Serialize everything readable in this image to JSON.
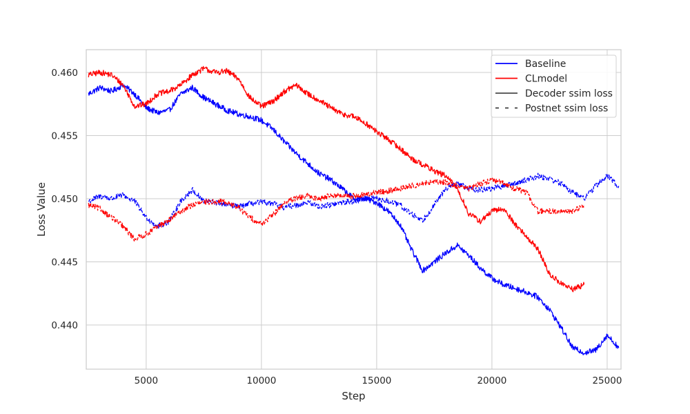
{
  "chart_data": {
    "type": "line",
    "xlabel": "Step",
    "ylabel": "Loss Value",
    "xlim": [
      2400,
      25600
    ],
    "ylim": [
      0.4365,
      0.4618
    ],
    "x_ticks": [
      5000,
      10000,
      15000,
      20000,
      25000
    ],
    "y_ticks": [
      0.44,
      0.445,
      0.45,
      0.455,
      0.46
    ],
    "x_tick_labels": [
      "5000",
      "10000",
      "15000",
      "20000",
      "25000"
    ],
    "y_tick_labels": [
      "0.440",
      "0.445",
      "0.450",
      "0.455",
      "0.460"
    ],
    "grid": true,
    "legend_position": "top-right",
    "legend": [
      {
        "label": "Baseline",
        "color": "#0000ff",
        "style": "solid"
      },
      {
        "label": "CLmodel",
        "color": "#ff0000",
        "style": "solid"
      },
      {
        "label": "Decoder ssim loss",
        "color": "#000000",
        "style": "solid"
      },
      {
        "label": "Postnet ssim loss",
        "color": "#000000",
        "style": "dashed"
      }
    ],
    "series": [
      {
        "name": "Baseline",
        "loss": "Decoder ssim loss",
        "color": "#0000ff",
        "style": "solid",
        "x": [
          2500,
          3000,
          3500,
          4000,
          4500,
          5000,
          5500,
          6000,
          6500,
          7000,
          7500,
          8000,
          8500,
          9000,
          9500,
          10000,
          10500,
          11000,
          11500,
          12000,
          12500,
          13000,
          13500,
          14000,
          14500,
          15000,
          15500,
          16000,
          16500,
          17000,
          17500,
          18000,
          18500,
          19000,
          19500,
          20000,
          20500,
          21000,
          21500,
          22000,
          22500,
          23000,
          23500,
          24000,
          24500,
          25000,
          25500
        ],
        "y": [
          0.4583,
          0.4588,
          0.4585,
          0.459,
          0.4583,
          0.4572,
          0.4568,
          0.457,
          0.4583,
          0.4588,
          0.458,
          0.4575,
          0.457,
          0.4567,
          0.4565,
          0.4562,
          0.4555,
          0.4545,
          0.4536,
          0.4528,
          0.452,
          0.4515,
          0.4508,
          0.45,
          0.45,
          0.4497,
          0.449,
          0.448,
          0.446,
          0.4443,
          0.445,
          0.4457,
          0.4463,
          0.4455,
          0.4445,
          0.4437,
          0.4432,
          0.4429,
          0.4426,
          0.4422,
          0.4412,
          0.4398,
          0.4382,
          0.4378,
          0.438,
          0.4392,
          0.4382
        ]
      },
      {
        "name": "CLmodel",
        "loss": "Decoder ssim loss",
        "color": "#ff0000",
        "style": "solid",
        "x": [
          2500,
          3000,
          3500,
          4000,
          4500,
          5000,
          5500,
          6000,
          6500,
          7000,
          7500,
          8000,
          8500,
          9000,
          9500,
          10000,
          10500,
          11000,
          11500,
          12000,
          12500,
          13000,
          13500,
          14000,
          14500,
          15000,
          15500,
          16000,
          16500,
          17000,
          17500,
          18000,
          18500,
          19000,
          19500,
          20000,
          20500,
          21000,
          21500,
          22000,
          22500,
          23000,
          23500,
          24000
        ],
        "y": [
          0.4598,
          0.46,
          0.4598,
          0.459,
          0.4573,
          0.4575,
          0.4583,
          0.4585,
          0.459,
          0.4598,
          0.4603,
          0.46,
          0.4601,
          0.4595,
          0.458,
          0.4573,
          0.4577,
          0.4585,
          0.459,
          0.4583,
          0.4578,
          0.4572,
          0.4567,
          0.4565,
          0.456,
          0.4553,
          0.4547,
          0.454,
          0.4532,
          0.4527,
          0.4522,
          0.4518,
          0.4508,
          0.4488,
          0.4482,
          0.449,
          0.4492,
          0.448,
          0.447,
          0.446,
          0.444,
          0.4433,
          0.4428,
          0.4432
        ]
      },
      {
        "name": "Baseline",
        "loss": "Postnet ssim loss",
        "color": "#0000ff",
        "style": "dashed",
        "x": [
          2500,
          3000,
          3500,
          4000,
          4500,
          5000,
          5500,
          6000,
          6500,
          7000,
          7500,
          8000,
          8500,
          9000,
          9500,
          10000,
          10500,
          11000,
          11500,
          12000,
          12500,
          13000,
          13500,
          14000,
          14500,
          15000,
          15500,
          16000,
          16500,
          17000,
          17500,
          18000,
          18500,
          19000,
          19500,
          20000,
          20500,
          21000,
          21500,
          22000,
          22500,
          23000,
          23500,
          24000,
          24500,
          25000,
          25500
        ],
        "y": [
          0.4498,
          0.4502,
          0.45,
          0.4503,
          0.4498,
          0.4485,
          0.4478,
          0.4482,
          0.4498,
          0.4507,
          0.4498,
          0.4497,
          0.4495,
          0.4494,
          0.4496,
          0.4497,
          0.4496,
          0.4493,
          0.4495,
          0.4497,
          0.4494,
          0.4495,
          0.4497,
          0.4498,
          0.45,
          0.45,
          0.4498,
          0.4495,
          0.4488,
          0.4483,
          0.4495,
          0.4508,
          0.4512,
          0.4508,
          0.4507,
          0.4508,
          0.451,
          0.4512,
          0.4515,
          0.4518,
          0.4516,
          0.4512,
          0.4505,
          0.45,
          0.451,
          0.4518,
          0.451
        ]
      },
      {
        "name": "CLmodel",
        "loss": "Postnet ssim loss",
        "color": "#ff0000",
        "style": "dashed",
        "x": [
          2500,
          3000,
          3500,
          4000,
          4500,
          5000,
          5500,
          6000,
          6500,
          7000,
          7500,
          8000,
          8500,
          9000,
          9500,
          10000,
          10500,
          11000,
          11500,
          12000,
          12500,
          13000,
          13500,
          14000,
          14500,
          15000,
          15500,
          16000,
          16500,
          17000,
          17500,
          18000,
          18500,
          19000,
          19500,
          20000,
          20500,
          21000,
          21500,
          22000,
          22500,
          23000,
          23500,
          24000
        ],
        "y": [
          0.4495,
          0.4492,
          0.4485,
          0.4478,
          0.4468,
          0.4472,
          0.4478,
          0.4483,
          0.449,
          0.4495,
          0.4497,
          0.4498,
          0.4497,
          0.4493,
          0.4485,
          0.448,
          0.4487,
          0.4497,
          0.45,
          0.4502,
          0.45,
          0.4503,
          0.4502,
          0.4502,
          0.4503,
          0.4505,
          0.4506,
          0.4508,
          0.451,
          0.4512,
          0.4513,
          0.4513,
          0.451,
          0.4508,
          0.4512,
          0.4515,
          0.4512,
          0.4508,
          0.4505,
          0.449,
          0.449,
          0.449,
          0.449,
          0.4495
        ]
      }
    ]
  }
}
